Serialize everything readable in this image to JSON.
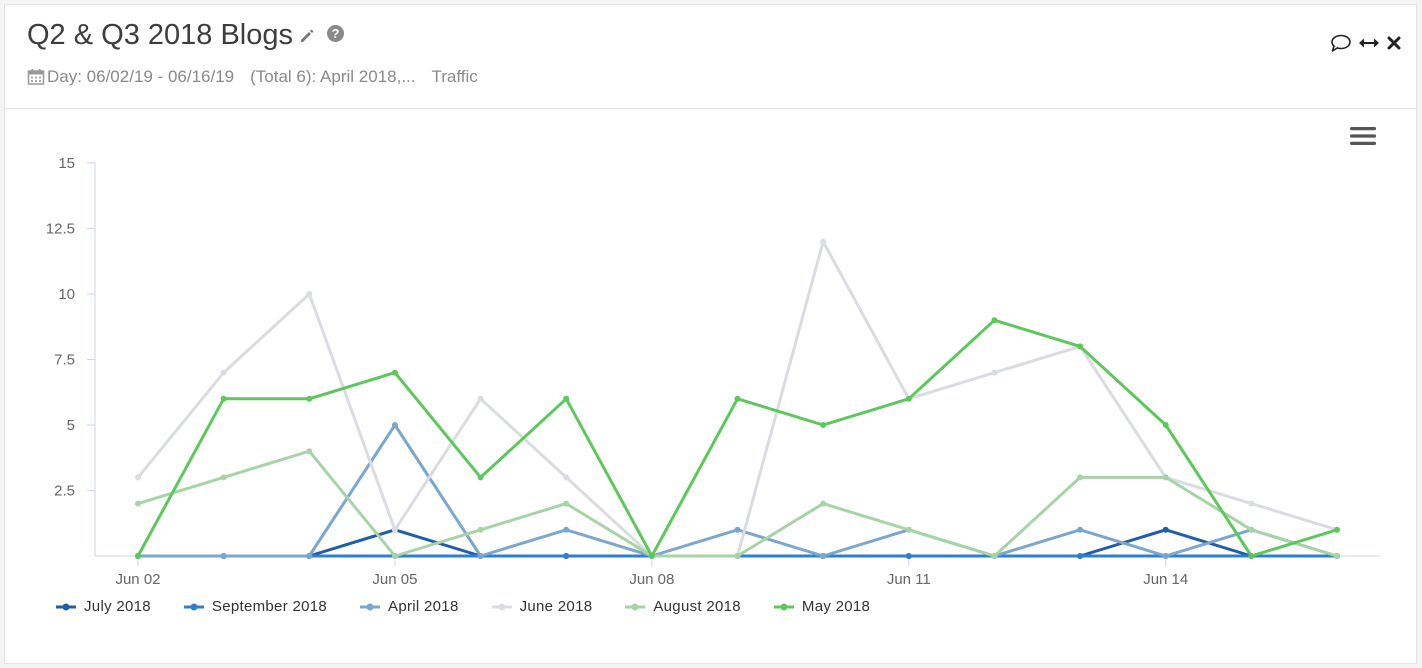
{
  "header": {
    "title": "Q2 & Q3 2018 Blogs",
    "date_range": "Day: 06/02/19 - 06/16/19",
    "segments": "(Total 6): April 2018,...",
    "metric": "Traffic"
  },
  "icons": {
    "edit": "pencil-icon",
    "help": "help-icon",
    "comment": "comment-icon",
    "expand": "expand-icon",
    "close": "close-icon",
    "calendar": "calendar-icon",
    "menu": "menu-icon"
  },
  "chart_data": {
    "type": "line",
    "x": [
      "Jun 02",
      "Jun 03",
      "Jun 04",
      "Jun 05",
      "Jun 06",
      "Jun 07",
      "Jun 08",
      "Jun 09",
      "Jun 10",
      "Jun 11",
      "Jun 12",
      "Jun 13",
      "Jun 14",
      "Jun 15",
      "Jun 16"
    ],
    "x_tick_labels": [
      "Jun 02",
      "Jun 05",
      "Jun 08",
      "Jun 11",
      "Jun 14"
    ],
    "y_tick_labels": [
      "2.5",
      "5",
      "7.5",
      "10",
      "12.5",
      "15"
    ],
    "ylim": [
      0,
      15
    ],
    "grid": false,
    "legend_position": "bottom-left",
    "series": [
      {
        "name": "July 2018",
        "color": "#1f5ea8",
        "values": [
          0,
          0,
          0,
          1,
          0,
          0,
          0,
          0,
          0,
          0,
          0,
          0,
          1,
          0,
          0
        ]
      },
      {
        "name": "September 2018",
        "color": "#2f7fcf",
        "values": [
          0,
          0,
          0,
          0,
          0,
          0,
          0,
          0,
          0,
          0,
          0,
          0,
          0,
          0,
          0
        ]
      },
      {
        "name": "April 2018",
        "color": "#7aa6cf",
        "values": [
          0,
          0,
          0,
          5,
          0,
          1,
          0,
          1,
          0,
          1,
          0,
          1,
          0,
          1,
          0
        ]
      },
      {
        "name": "June 2018",
        "color": "#d9dce0",
        "values": [
          3,
          7,
          10,
          1,
          6,
          3,
          0,
          0,
          12,
          6,
          7,
          8,
          3,
          2,
          1
        ]
      },
      {
        "name": "August 2018",
        "color": "#a7d4a7",
        "values": [
          2,
          3,
          4,
          0,
          1,
          2,
          0,
          0,
          2,
          1,
          0,
          3,
          3,
          1,
          0
        ]
      },
      {
        "name": "May 2018",
        "color": "#5cc85c",
        "values": [
          0,
          6,
          6,
          7,
          3,
          6,
          0,
          6,
          5,
          6,
          9,
          8,
          5,
          0,
          1
        ]
      }
    ]
  }
}
